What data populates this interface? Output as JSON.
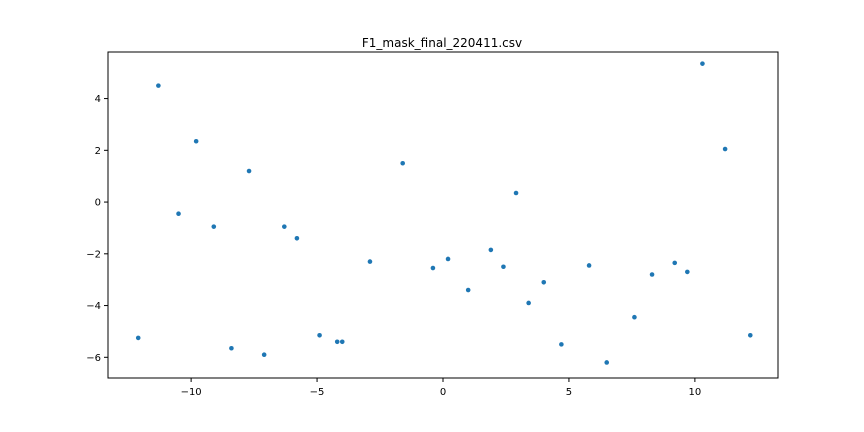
{
  "chart_data": {
    "type": "scatter",
    "title": "F1_mask_final_220411.csv",
    "xlabel": "",
    "ylabel": "",
    "xlim": [
      -13.3,
      13.3
    ],
    "ylim": [
      -6.8,
      5.8
    ],
    "xticks": [
      -10,
      -5,
      0,
      5,
      10
    ],
    "xtick_labels": [
      "−10",
      "−5",
      "0",
      "5",
      "10"
    ],
    "yticks": [
      -6,
      -4,
      -2,
      0,
      2,
      4
    ],
    "ytick_labels": [
      "−6",
      "−4",
      "−2",
      "0",
      "2",
      "4"
    ],
    "grid": false,
    "legend": "none",
    "marker_color": "#1f77b4",
    "x": [
      -12.1,
      -11.3,
      -10.5,
      -9.8,
      -9.1,
      -8.4,
      -7.7,
      -7.1,
      -6.3,
      -5.8,
      -4.9,
      -4.2,
      -4.0,
      -2.9,
      -1.6,
      -0.4,
      0.2,
      1.0,
      1.9,
      2.4,
      2.9,
      3.4,
      4.0,
      4.7,
      5.8,
      6.5,
      7.6,
      8.3,
      9.2,
      9.7,
      10.3,
      11.2,
      12.2
    ],
    "y": [
      -5.25,
      4.5,
      -0.45,
      2.35,
      -0.95,
      -5.65,
      1.2,
      -5.9,
      -0.95,
      -1.4,
      -5.15,
      -5.4,
      -5.4,
      -2.3,
      1.5,
      -2.55,
      -2.2,
      -3.4,
      -1.85,
      -2.5,
      0.35,
      -3.9,
      -3.1,
      -5.5,
      -2.45,
      -6.2,
      -4.45,
      -2.8,
      -2.35,
      -2.7,
      5.35,
      2.05,
      -5.15
    ]
  }
}
